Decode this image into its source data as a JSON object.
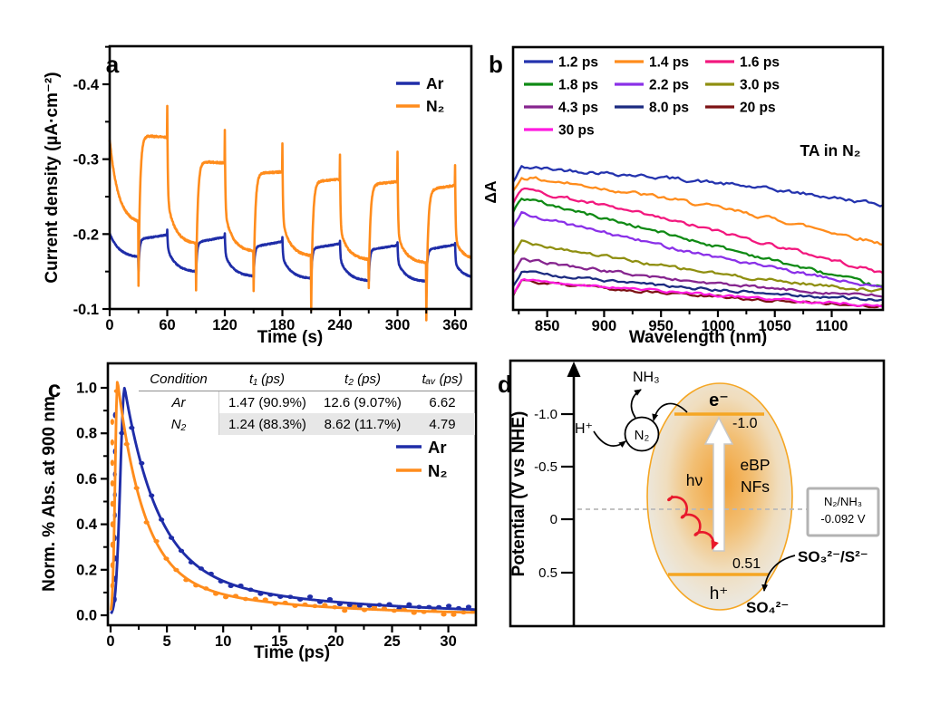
{
  "figure": {
    "panel_labels": [
      "a",
      "b",
      "c",
      "d"
    ],
    "background": "#ffffff"
  },
  "colors": {
    "ar_navy": "#1f2da8",
    "n2_orange": "#ff8c1c",
    "frame_black": "#000000",
    "table_shade": "#e7e7e7",
    "redox_box_border": "#b3b3b3",
    "dashed_gray": "#b9b9b9",
    "level_orange": "#f5a623",
    "red_arrow": "#e8182b"
  },
  "chart_data": {
    "a": {
      "type": "line",
      "x_label": "Time (s)",
      "y_label": "Current density (µA·cm⁻²)",
      "x_ticks": [
        0,
        60,
        120,
        180,
        240,
        300,
        360
      ],
      "x_minor_step": 30,
      "x_range": [
        0,
        377
      ],
      "y_tick_labels": [
        "-0.4",
        "-0.3",
        "-0.2",
        "-0.1"
      ],
      "y_ticks": [
        -0.4,
        -0.3,
        -0.2,
        -0.1
      ],
      "y_minor_ticks": [
        -0.45,
        -0.35,
        -0.25,
        -0.15
      ],
      "y_range": [
        -0.45,
        -0.1
      ],
      "light_cycle": {
        "first_on_s": 30,
        "on_s": 30,
        "off_s": 30,
        "cycles": 6
      },
      "series": [
        {
          "name": "Ar",
          "color": "#1f2da8",
          "seed": 11,
          "noise": 0.0007,
          "rise_tau": 1.1,
          "spike_fall": 0.5,
          "off_tau": 9,
          "pre": {
            "v0": -0.201,
            "lo": -0.168,
            "tau": 10
          },
          "dip": [
            -0.15,
            -0.146,
            -0.142,
            -0.139,
            -0.137,
            -0.136
          ],
          "plateau": [
            -0.193,
            -0.189,
            -0.183,
            -0.181,
            -0.179,
            -0.179
          ],
          "plateau_end": [
            -0.199,
            -0.196,
            -0.19,
            -0.187,
            -0.185,
            -0.186
          ],
          "spike": [
            -0.206,
            -0.201,
            -0.196,
            -0.191,
            -0.189,
            -0.188
          ],
          "off_hi": [
            -0.181,
            -0.173,
            -0.169,
            -0.166,
            -0.163,
            -0.161
          ],
          "off_lo": [
            -0.149,
            -0.143,
            -0.14,
            -0.137,
            -0.136,
            -0.14
          ]
        },
        {
          "name": "N₂",
          "color": "#ff8c1c",
          "seed": 5,
          "noise": 0.0011,
          "rise_tau": 1.7,
          "spike_fall": 0.55,
          "off_tau": 8.5,
          "pre": {
            "v0": -0.326,
            "lo": -0.213,
            "tau": 9
          },
          "dip": [
            -0.131,
            -0.125,
            -0.124,
            -0.098,
            -0.128,
            -0.085
          ],
          "plateau": [
            -0.332,
            -0.297,
            -0.281,
            -0.27,
            -0.266,
            -0.259
          ],
          "plateau_end": [
            -0.329,
            -0.295,
            -0.283,
            -0.273,
            -0.27,
            -0.265
          ],
          "spike": [
            -0.371,
            -0.339,
            -0.321,
            -0.306,
            -0.31,
            -0.292
          ],
          "off_hi": [
            -0.245,
            -0.228,
            -0.217,
            -0.207,
            -0.2,
            -0.192
          ],
          "off_lo": [
            -0.186,
            -0.176,
            -0.17,
            -0.165,
            -0.161,
            -0.165
          ]
        }
      ]
    },
    "b": {
      "type": "line",
      "annotation": "TA in N₂",
      "x_label": "Wavelength (nm)",
      "y_label": "ΔA",
      "x_ticks": [
        850,
        900,
        950,
        1000,
        1050,
        1100
      ],
      "x_minor_step": 25,
      "x_range": [
        820,
        1145
      ],
      "y_axis_note": "arbitrary units, no ticks shown",
      "series": [
        {
          "label": "1.2 ps",
          "color": "#2433ae",
          "yL": 0.545,
          "yR": 0.4,
          "bow": 0.018,
          "noise": 0.012
        },
        {
          "label": "1.4 ps",
          "color": "#ff8c1c",
          "yL": 0.51,
          "yR": 0.252,
          "bow": 0.022,
          "noise": 0.012
        },
        {
          "label": "1.6 ps",
          "color": "#f2187e",
          "yL": 0.468,
          "yR": 0.14,
          "bow": 0.012,
          "noise": 0.011
        },
        {
          "label": "1.8 ps",
          "color": "#0f8a14",
          "yL": 0.435,
          "yR": 0.085,
          "bow": 0.0,
          "noise": 0.011
        },
        {
          "label": "2.2 ps",
          "color": "#8a30e8",
          "yL": 0.375,
          "yR": 0.082,
          "bow": -0.012,
          "noise": 0.01
        },
        {
          "label": "3.0 ps",
          "color": "#8f8f10",
          "yL": 0.268,
          "yR": 0.072,
          "bow": -0.022,
          "noise": 0.01
        },
        {
          "label": "4.3 ps",
          "color": "#86258f",
          "yL": 0.198,
          "yR": 0.052,
          "bow": -0.018,
          "noise": 0.009
        },
        {
          "label": "8.0 ps",
          "color": "#1b2a80",
          "yL": 0.148,
          "yR": 0.038,
          "bow": -0.012,
          "noise": 0.009
        },
        {
          "label": "20 ps",
          "color": "#7c1113",
          "yL": 0.112,
          "yR": 0.013,
          "bow": -0.008,
          "noise": 0.008
        },
        {
          "label": "30 ps",
          "color": "#ff1ae0",
          "yL": 0.118,
          "yR": 0.016,
          "bow": -0.006,
          "noise": 0.008
        }
      ]
    },
    "c": {
      "type": "scatter+line",
      "x_label": "Time (ps)",
      "y_label": "Norm. % Abs. at 900 nm",
      "x_ticks": [
        0,
        5,
        10,
        15,
        20,
        25,
        30
      ],
      "x_minor_step": 2.5,
      "x_range": [
        0,
        32.4
      ],
      "y_tick_labels": [
        "0.0",
        "0.2",
        "0.4",
        "0.6",
        "0.8",
        "1.0"
      ],
      "y_ticks": [
        0.0,
        0.2,
        0.4,
        0.6,
        0.8,
        1.0
      ],
      "y_minor_step": 0.1,
      "series": [
        {
          "name": "Ar",
          "color": "#1f2da8",
          "seed": 7,
          "fit": {
            "vmax": 1.0,
            "peak": 1.25,
            "sigma": 0.55,
            "a1": 0.8,
            "tau1": 2.9,
            "a2": 0.2,
            "tau2": 15
          },
          "col_x": 0.38,
          "col_dots": [
            0.07,
            0.16,
            0.25,
            0.34,
            0.44,
            0.53,
            0.62,
            0.72,
            0.88
          ],
          "dot_t0": 1.0,
          "dot_dt": 0.88,
          "dot_noise": 0.013
        },
        {
          "name": "N₂",
          "color": "#ff8c1c",
          "seed": 3,
          "fit": {
            "vmax": 1.035,
            "peak": 0.62,
            "sigma": 0.3,
            "a1": 0.86,
            "tau1": 2.3,
            "a2": 0.17,
            "tau2": 12
          },
          "col_x": 0.15,
          "col_dots": [
            0.04,
            0.13,
            0.22,
            0.31,
            0.4,
            0.49,
            0.58,
            0.67,
            0.76,
            0.85
          ],
          "dot_t0": 0.55,
          "dot_dt": 0.88,
          "dot_noise": 0.012
        }
      ],
      "table": {
        "headers": [
          "Condition",
          "t₁ (ps)",
          "t₂ (ps)",
          "tₐᵥ (ps)"
        ],
        "rows": [
          [
            "Ar",
            "1.47 (90.9%)",
            "12.6 (9.07%)",
            "6.62"
          ],
          [
            "N₂",
            "1.24 (88.3%)",
            "8.62 (11.7%)",
            "4.79"
          ]
        ],
        "shaded_row_index": 1
      }
    },
    "d": {
      "type": "diagram",
      "y_label": "Potential (V vs NHE)",
      "y_tick_labels": [
        "-1.0",
        "-0.5",
        "0",
        "0.5"
      ],
      "y_ticks": [
        -1.0,
        -0.5,
        0,
        0.5
      ],
      "conduction_level": {
        "value_label": "-1.0",
        "carrier": "e⁻",
        "potential": -1.0
      },
      "valence_level": {
        "value_label": "0.51",
        "carrier": "h⁺",
        "potential": 0.51
      },
      "material_line1": "eBP",
      "material_line2": "NFs",
      "photon": "hν",
      "redox_box": {
        "line1": "N₂/NH₃",
        "line2": "-0.092 V",
        "potential": -0.092
      },
      "species": {
        "h_plus": "H⁺",
        "n2": "N₂",
        "nh3": "NH₃",
        "so3": "SO₃²⁻/S²⁻",
        "so4": "SO₄²⁻"
      }
    }
  }
}
